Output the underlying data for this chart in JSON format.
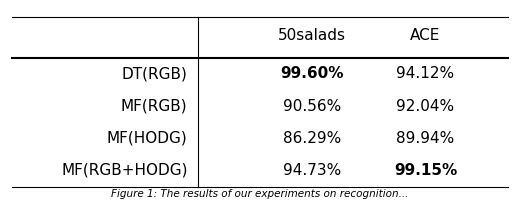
{
  "col_headers": [
    "50salads",
    "ACE"
  ],
  "row_labels": [
    "DT(RGB)",
    "MF(RGB)",
    "MF(HODG)",
    "MF(RGB+HODG)"
  ],
  "values": [
    [
      "99.60%",
      "94.12%"
    ],
    [
      "90.56%",
      "92.04%"
    ],
    [
      "86.29%",
      "89.94%"
    ],
    [
      "94.73%",
      "99.15%"
    ]
  ],
  "bold": [
    [
      true,
      false
    ],
    [
      false,
      false
    ],
    [
      false,
      false
    ],
    [
      false,
      true
    ]
  ],
  "bg_color": "#ffffff",
  "text_color": "#000000",
  "font_size": 11
}
